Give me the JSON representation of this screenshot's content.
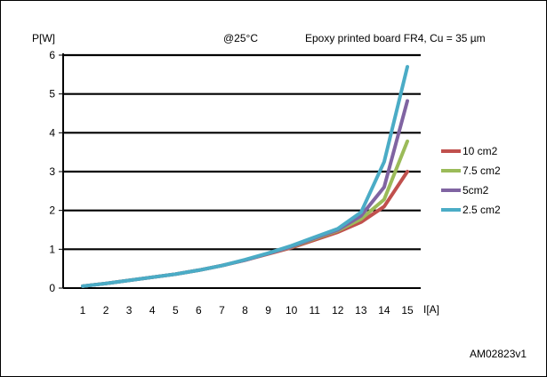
{
  "chart_data": {
    "type": "line",
    "ylabel": "P[W]",
    "xlabel": "I[A]",
    "annotation_temp": "@25°C",
    "annotation_board": "Epoxy printed board FR4, Cu = 35 µm",
    "footer_id": "AM02823v1",
    "x": [
      1,
      2,
      3,
      4,
      5,
      6,
      7,
      8,
      9,
      10,
      11,
      12,
      13,
      14,
      15
    ],
    "xticks": [
      "1",
      "2",
      "3",
      "4",
      "5",
      "6",
      "7",
      "8",
      "9",
      "10",
      "11",
      "12",
      "13",
      "14",
      "15"
    ],
    "yticks": [
      "0",
      "1",
      "2",
      "3",
      "4",
      "5",
      "6"
    ],
    "ylim": [
      0,
      6
    ],
    "xlim": [
      1,
      15
    ],
    "grid": "horizontal",
    "legend_position": "right",
    "series": [
      {
        "name": "10 cm2",
        "color": "#c0504d",
        "values": [
          0.05,
          0.12,
          0.2,
          0.28,
          0.36,
          0.46,
          0.58,
          0.72,
          0.88,
          1.04,
          1.24,
          1.44,
          1.7,
          2.1,
          3.0
        ]
      },
      {
        "name": "7.5 cm2",
        "color": "#9bbb59",
        "values": [
          0.05,
          0.12,
          0.2,
          0.28,
          0.36,
          0.46,
          0.58,
          0.72,
          0.89,
          1.06,
          1.27,
          1.48,
          1.78,
          2.28,
          3.78
        ]
      },
      {
        "name": "5cm2",
        "color": "#8064a2",
        "values": [
          0.05,
          0.12,
          0.2,
          0.28,
          0.36,
          0.46,
          0.58,
          0.72,
          0.89,
          1.07,
          1.29,
          1.5,
          1.86,
          2.6,
          4.82
        ]
      },
      {
        "name": "2.5 cm2",
        "color": "#4bacc6",
        "values": [
          0.05,
          0.12,
          0.2,
          0.28,
          0.36,
          0.46,
          0.58,
          0.73,
          0.9,
          1.09,
          1.31,
          1.53,
          1.95,
          3.25,
          5.7
        ]
      }
    ]
  }
}
